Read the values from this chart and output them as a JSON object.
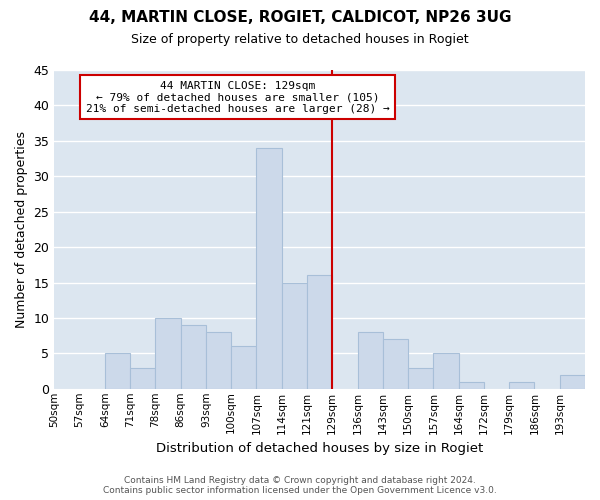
{
  "title1": "44, MARTIN CLOSE, ROGIET, CALDICOT, NP26 3UG",
  "title2": "Size of property relative to detached houses in Rogiet",
  "xlabel": "Distribution of detached houses by size in Rogiet",
  "ylabel": "Number of detached properties",
  "footer1": "Contains HM Land Registry data © Crown copyright and database right 2024.",
  "footer2": "Contains public sector information licensed under the Open Government Licence v3.0.",
  "bin_labels": [
    "50sqm",
    "57sqm",
    "64sqm",
    "71sqm",
    "78sqm",
    "86sqm",
    "93sqm",
    "100sqm",
    "107sqm",
    "114sqm",
    "121sqm",
    "129sqm",
    "136sqm",
    "143sqm",
    "150sqm",
    "157sqm",
    "164sqm",
    "172sqm",
    "179sqm",
    "186sqm",
    "193sqm"
  ],
  "bar_heights": [
    0,
    0,
    5,
    3,
    10,
    9,
    8,
    6,
    34,
    15,
    16,
    0,
    8,
    7,
    3,
    5,
    1,
    0,
    1,
    0,
    2
  ],
  "bar_color": "#ccd9ea",
  "bar_edge_color": "#a8bfd8",
  "highlight_line_color": "#cc0000",
  "annotation_title": "44 MARTIN CLOSE: 129sqm",
  "annotation_line1": "← 79% of detached houses are smaller (105)",
  "annotation_line2": "21% of semi-detached houses are larger (28) →",
  "annotation_box_color": "white",
  "annotation_box_edge": "#cc0000",
  "ylim": [
    0,
    45
  ],
  "yticks": [
    0,
    5,
    10,
    15,
    20,
    25,
    30,
    35,
    40,
    45
  ],
  "bg_color": "#dce6f0",
  "grid_color": "white",
  "highlight_bin_index": 11,
  "n_bins": 21
}
